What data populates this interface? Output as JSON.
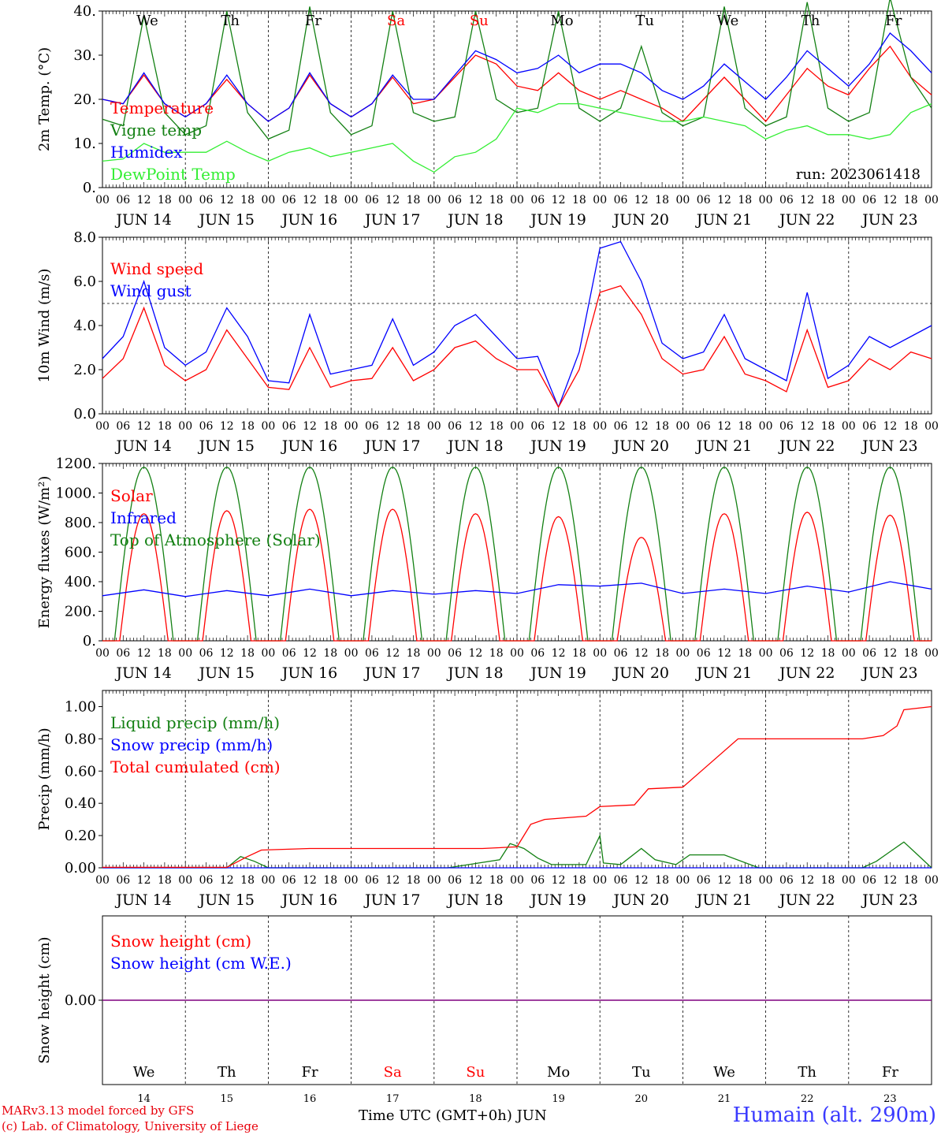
{
  "chart_data": [
    {
      "type": "line",
      "ylabel": "2m Temp. (°C)",
      "ylim": [
        0,
        40
      ],
      "yticks": [
        "0.",
        "10.",
        "20.",
        "30.",
        "40."
      ],
      "grid": false,
      "legend_placement": "left",
      "annotation": "run: 2023061418",
      "series": [
        {
          "name": "Temperature",
          "color": "#ff0000",
          "x_hours": [
            0,
            6,
            12,
            18,
            24,
            30,
            36,
            42,
            48,
            54,
            60,
            66,
            72,
            78,
            84,
            90,
            96,
            102,
            108,
            114,
            120,
            126,
            132,
            138,
            144,
            150,
            156,
            162,
            168,
            174,
            180,
            186,
            192,
            198,
            204,
            210,
            216,
            222,
            228,
            234,
            240
          ],
          "values": [
            20,
            19,
            25.5,
            19,
            16,
            19,
            24.5,
            19,
            15,
            18,
            25.5,
            19,
            16,
            19,
            25,
            19,
            20,
            25,
            30,
            28,
            23,
            22,
            26,
            22,
            20,
            22,
            20,
            18,
            15,
            20,
            25,
            20,
            15,
            21,
            27,
            23,
            21,
            27,
            32,
            25,
            21
          ]
        },
        {
          "name": "Vigne temp",
          "color": "#138013",
          "x_hours": [
            0,
            6,
            12,
            18,
            24,
            30,
            36,
            42,
            48,
            54,
            60,
            66,
            72,
            78,
            84,
            90,
            96,
            102,
            108,
            114,
            120,
            126,
            132,
            138,
            144,
            150,
            156,
            162,
            168,
            174,
            180,
            186,
            192,
            198,
            204,
            210,
            216,
            222,
            228,
            234,
            240
          ],
          "values": [
            15.5,
            14,
            39,
            17,
            12,
            14,
            40,
            17,
            11,
            13,
            41,
            17,
            12,
            14,
            40,
            17,
            15,
            16,
            40,
            20,
            17,
            18,
            40,
            18,
            15,
            18,
            32,
            17,
            14,
            16,
            41,
            18,
            14,
            16,
            42,
            18,
            15,
            17,
            43,
            25,
            18
          ]
        },
        {
          "name": "Humidex",
          "color": "#0000ff",
          "x_hours": [
            0,
            6,
            12,
            18,
            24,
            30,
            36,
            42,
            48,
            54,
            60,
            66,
            72,
            78,
            84,
            90,
            96,
            102,
            108,
            114,
            120,
            126,
            132,
            138,
            144,
            150,
            156,
            162,
            168,
            174,
            180,
            186,
            192,
            198,
            204,
            210,
            216,
            222,
            228,
            234,
            240
          ],
          "values": [
            20,
            19,
            26,
            19,
            16,
            19,
            25.5,
            19,
            15,
            18,
            26,
            19,
            16,
            19,
            25.5,
            20,
            20,
            25.5,
            31,
            29,
            26,
            27,
            30,
            26,
            28,
            28,
            26,
            22,
            20,
            23,
            28,
            24,
            20,
            25,
            31,
            27,
            23,
            28,
            35,
            31,
            26
          ]
        },
        {
          "name": "DewPoint Temp",
          "color": "#33ee33",
          "x_hours": [
            0,
            6,
            12,
            18,
            24,
            30,
            36,
            42,
            48,
            54,
            60,
            66,
            72,
            78,
            84,
            90,
            96,
            102,
            108,
            114,
            120,
            126,
            132,
            138,
            144,
            150,
            156,
            162,
            168,
            174,
            180,
            186,
            192,
            198,
            204,
            210,
            216,
            222,
            228,
            234,
            240
          ],
          "values": [
            6,
            6.5,
            10,
            8,
            8,
            8,
            10.5,
            8,
            6,
            8,
            9,
            7,
            8,
            9,
            10,
            6,
            3.5,
            7,
            8,
            11,
            18,
            17,
            19,
            19,
            18,
            17,
            16,
            15,
            15,
            16,
            15,
            14,
            11,
            13,
            14,
            12,
            12,
            11,
            12,
            17,
            19
          ]
        }
      ]
    },
    {
      "type": "line",
      "ylabel": "10m Wind (m/s)",
      "ylim": [
        0,
        8
      ],
      "yticks": [
        "0.0",
        "2.0",
        "4.0",
        "6.0",
        "8.0"
      ],
      "reference_line": 5,
      "legend_placement": "left",
      "series": [
        {
          "name": "Wind speed",
          "color": "#ff0000",
          "x_hours": [
            0,
            6,
            12,
            18,
            24,
            30,
            36,
            42,
            48,
            54,
            60,
            66,
            72,
            78,
            84,
            90,
            96,
            102,
            108,
            114,
            120,
            126,
            132,
            138,
            144,
            150,
            156,
            162,
            168,
            174,
            180,
            186,
            192,
            198,
            204,
            210,
            216,
            222,
            228,
            234,
            240
          ],
          "values": [
            1.6,
            2.5,
            4.8,
            2.2,
            1.5,
            2.0,
            3.8,
            2.5,
            1.2,
            1.1,
            3.0,
            1.2,
            1.5,
            1.6,
            3.0,
            1.5,
            2.0,
            3.0,
            3.3,
            2.5,
            2.0,
            2.0,
            0.3,
            2.0,
            5.5,
            5.8,
            4.5,
            2.5,
            1.8,
            2.0,
            3.5,
            1.8,
            1.5,
            1.0,
            3.8,
            1.2,
            1.5,
            2.5,
            2.0,
            2.8,
            2.5
          ]
        },
        {
          "name": "Wind gust",
          "color": "#0000ff",
          "x_hours": [
            0,
            6,
            12,
            18,
            24,
            30,
            36,
            42,
            48,
            54,
            60,
            66,
            72,
            78,
            84,
            90,
            96,
            102,
            108,
            114,
            120,
            126,
            132,
            138,
            144,
            150,
            156,
            162,
            168,
            174,
            180,
            186,
            192,
            198,
            204,
            210,
            216,
            222,
            228,
            234,
            240
          ],
          "values": [
            2.5,
            3.5,
            6.0,
            3.0,
            2.2,
            2.8,
            4.8,
            3.5,
            1.5,
            1.4,
            4.5,
            1.8,
            2.0,
            2.2,
            4.3,
            2.2,
            2.8,
            4.0,
            4.5,
            3.5,
            2.5,
            2.6,
            0.3,
            2.8,
            7.5,
            7.8,
            6.0,
            3.2,
            2.5,
            2.8,
            4.5,
            2.5,
            2.0,
            1.5,
            5.5,
            1.6,
            2.2,
            3.5,
            3.0,
            3.5,
            4.0
          ]
        }
      ]
    },
    {
      "type": "line",
      "ylabel": "Energy fluxes (W/m²)",
      "ylim": [
        0,
        1200
      ],
      "yticks": [
        "0.",
        "200.",
        "400.",
        "600.",
        "800.",
        "1000.",
        "1200."
      ],
      "legend_placement": "left",
      "series": [
        {
          "name": "Solar",
          "color": "#ff0000",
          "peaks": [
            860,
            880,
            890,
            890,
            860,
            840,
            700,
            860,
            870,
            850
          ]
        },
        {
          "name": "Infrared",
          "color": "#0000ff",
          "x_hours": [
            0,
            12,
            24,
            36,
            48,
            60,
            72,
            84,
            96,
            108,
            120,
            132,
            144,
            156,
            168,
            180,
            192,
            204,
            216,
            228,
            240
          ],
          "values": [
            305,
            345,
            300,
            340,
            305,
            350,
            305,
            340,
            315,
            340,
            320,
            380,
            370,
            390,
            320,
            350,
            320,
            370,
            330,
            400,
            350
          ]
        },
        {
          "name": "Top of Atmosphere (Solar)",
          "color": "#138013",
          "peaks": [
            1175,
            1175,
            1175,
            1175,
            1175,
            1175,
            1175,
            1175,
            1175,
            1175
          ]
        }
      ]
    },
    {
      "type": "line",
      "ylabel": "Precip (mm/h)",
      "ylim": [
        0,
        1.1
      ],
      "yticks": [
        "0.00",
        "0.20",
        "0.40",
        "0.60",
        "0.80",
        "1.00"
      ],
      "legend_placement": "left",
      "series": [
        {
          "name": "Liquid precip (mm/h)",
          "color": "#138013",
          "x_hours": [
            0,
            36,
            40,
            44,
            48,
            100,
            115,
            118,
            122,
            126,
            130,
            140,
            144,
            145,
            150,
            156,
            160,
            166,
            170,
            180,
            190,
            200,
            220,
            224,
            228,
            232,
            236,
            240
          ],
          "values": [
            0,
            0,
            0.07,
            0.04,
            0,
            0,
            0.05,
            0.15,
            0.12,
            0.06,
            0.02,
            0.02,
            0.2,
            0.03,
            0.02,
            0.12,
            0.05,
            0.02,
            0.08,
            0.08,
            0,
            0,
            0,
            0.04,
            0.1,
            0.16,
            0.08,
            0
          ]
        },
        {
          "name": "Snow precip (mm/h)",
          "color": "#0000ff",
          "x_hours": [
            0,
            240
          ],
          "values": [
            0,
            0
          ]
        },
        {
          "name": "Total cumulated (cm)",
          "color": "#ff0000",
          "x_hours": [
            0,
            36,
            42,
            46,
            60,
            110,
            120,
            124,
            128,
            140,
            144,
            154,
            158,
            168,
            184,
            220,
            226,
            230,
            232,
            240
          ],
          "values": [
            0.003,
            0.003,
            0.07,
            0.11,
            0.12,
            0.12,
            0.13,
            0.27,
            0.3,
            0.32,
            0.38,
            0.39,
            0.49,
            0.5,
            0.8,
            0.8,
            0.82,
            0.88,
            0.98,
            1.0
          ]
        }
      ]
    },
    {
      "type": "line",
      "ylabel": "Snow height (cm)",
      "yticks": [
        "0.00"
      ],
      "legend_placement": "left",
      "series": [
        {
          "name": "Snow height (cm)",
          "color": "#ff0000",
          "x_hours": [
            0,
            240
          ],
          "values": [
            0,
            0
          ]
        },
        {
          "name": "Snow height (cm W.E.)",
          "color": "#0000ff",
          "x_hours": [
            0,
            240
          ],
          "values": [
            0,
            0
          ]
        }
      ]
    }
  ],
  "axis": {
    "hour_ticks": [
      "00",
      "06",
      "12",
      "18"
    ],
    "final_tick": "00",
    "dates": [
      "JUN 14",
      "JUN 15",
      "JUN 16",
      "JUN 17",
      "JUN 18",
      "JUN 19",
      "JUN 20",
      "JUN 21",
      "JUN 22",
      "JUN 23"
    ],
    "weekdays": [
      "We",
      "Th",
      "Fr",
      "Sa",
      "Su",
      "Mo",
      "Tu",
      "We",
      "Th",
      "Fr"
    ],
    "weekend_flags": [
      false,
      false,
      false,
      true,
      true,
      false,
      false,
      false,
      false,
      false
    ],
    "day_numbers": [
      "14",
      "15",
      "16",
      "17",
      "18",
      "19",
      "20",
      "21",
      "22",
      "23"
    ],
    "x_title": "Time UTC (GMT+0h) JUN"
  },
  "footer": {
    "credit1": "MARv3.13 model forced by GFS",
    "credit2": "(c) Lab. of Climatology, University of Liege",
    "station": "Humain (alt. 290m)"
  },
  "colors": {
    "red": "#ff0000",
    "green": "#138013",
    "blue": "#0000ff",
    "lightgreen": "#33ee33",
    "purple": "#7f007f"
  }
}
